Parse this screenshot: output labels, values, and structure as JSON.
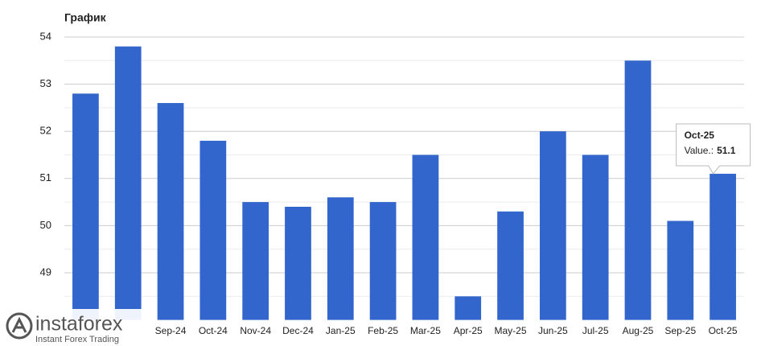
{
  "chart_data": {
    "type": "bar",
    "title": "График",
    "categories": [
      null,
      null,
      "Sep-24",
      "Oct-24",
      "Nov-24",
      "Dec-24",
      "Jan-25",
      "Feb-25",
      "Mar-25",
      "Apr-25",
      "May-25",
      "Jun-25",
      "Jul-25",
      "Aug-25",
      "Sep-25",
      "Oct-25"
    ],
    "values": [
      52.8,
      53.8,
      52.6,
      51.8,
      50.5,
      50.4,
      50.6,
      50.5,
      51.5,
      48.5,
      50.3,
      52.0,
      51.5,
      53.5,
      50.1,
      51.1
    ],
    "color": "#3366cc",
    "ylim": [
      48,
      54
    ],
    "yticks": [
      49,
      50,
      51,
      52,
      53,
      54
    ],
    "minor_yticks": [
      48.5,
      49.5,
      50.5,
      51.5,
      52.5,
      53.5
    ],
    "grid": true,
    "tooltip": {
      "value_label": "Value.:"
    }
  },
  "watermark": {
    "brand": "instaforex",
    "tagline": "Instant Forex Trading"
  }
}
